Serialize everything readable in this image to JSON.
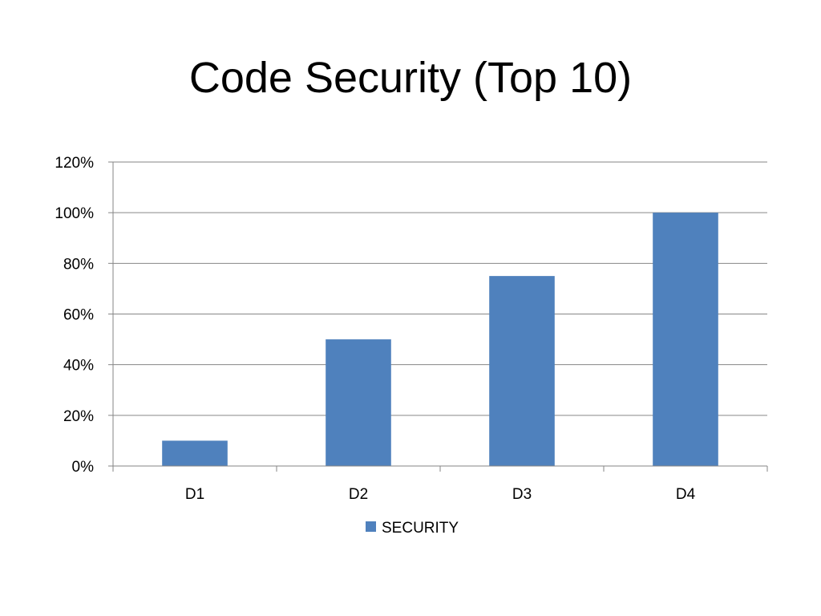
{
  "slide": {
    "title": "Code Security (Top 10)"
  },
  "chart_data": {
    "type": "bar",
    "title": "",
    "xlabel": "",
    "ylabel": "",
    "categories": [
      "D1",
      "D2",
      "D3",
      "D4"
    ],
    "series": [
      {
        "name": "SECURITY",
        "values": [
          0.1,
          0.5,
          0.75,
          1.0
        ],
        "color": "#4F81BD"
      }
    ],
    "ylim": [
      0,
      1.2
    ],
    "yticks": [
      0,
      0.2,
      0.4,
      0.6,
      0.8,
      1.0,
      1.2
    ],
    "ytick_labels": [
      "0%",
      "20%",
      "40%",
      "60%",
      "80%",
      "100%",
      "120%"
    ],
    "grid": true,
    "legend_position": "bottom"
  }
}
